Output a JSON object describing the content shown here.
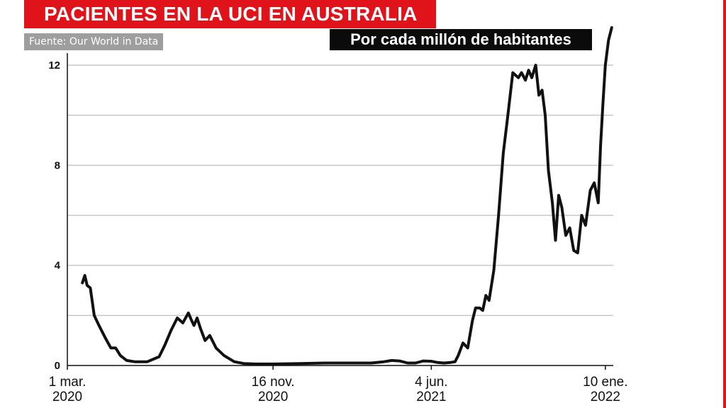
{
  "header": {
    "title": "PACIENTES EN LA UCI EN AUSTRALIA",
    "source": "Fuente: Our World in Data",
    "subtitle": "Por cada millón de habitantes"
  },
  "colors": {
    "title_bg": "#e0131b",
    "source_bg": "#9e9e9e",
    "subtitle_bg": "#0b0b0b",
    "line": "#111111",
    "grid": "#c8c8c8"
  },
  "chart_data": {
    "type": "line",
    "title": "PACIENTES EN LA UCI EN AUSTRALIA",
    "subtitle": "Por cada millón de habitantes",
    "xlabel": "",
    "ylabel": "",
    "ylim": [
      0,
      12
    ],
    "xlim": [
      "2020-03-01",
      "2022-01-20"
    ],
    "grid": true,
    "legend": "none",
    "y_ticks": [
      0,
      4,
      8,
      12
    ],
    "x_ticks": [
      {
        "date": "2020-03-01",
        "line1": "1 mar.",
        "line2": "2020"
      },
      {
        "date": "2020-11-16",
        "line1": "16 nov.",
        "line2": "2020"
      },
      {
        "date": "2021-06-04",
        "line1": "4 jun.",
        "line2": "2021"
      },
      {
        "date": "2022-01-10",
        "line1": "10 ene.",
        "line2": "2022"
      }
    ],
    "series": [
      {
        "x": [
          "2020-03-20",
          "2020-03-23",
          "2020-03-26",
          "2020-03-30",
          "2020-04-04",
          "2020-04-10",
          "2020-04-18",
          "2020-04-25",
          "2020-05-01",
          "2020-05-07",
          "2020-05-15",
          "2020-05-25",
          "2020-06-10",
          "2020-06-25",
          "2020-07-02",
          "2020-07-10",
          "2020-07-18",
          "2020-07-25",
          "2020-08-01",
          "2020-08-05",
          "2020-08-08",
          "2020-08-12",
          "2020-08-16",
          "2020-08-22",
          "2020-08-28",
          "2020-09-05",
          "2020-09-15",
          "2020-09-28",
          "2020-10-10",
          "2020-10-25",
          "2020-11-16",
          "2020-12-20",
          "2021-01-20",
          "2021-02-20",
          "2021-03-20",
          "2021-04-05",
          "2021-04-15",
          "2021-04-25",
          "2021-05-05",
          "2021-05-15",
          "2021-05-25",
          "2021-06-04",
          "2021-06-12",
          "2021-06-20",
          "2021-06-28",
          "2021-07-04",
          "2021-07-08",
          "2021-07-14",
          "2021-07-20",
          "2021-07-26",
          "2021-07-30",
          "2021-08-04",
          "2021-08-08",
          "2021-08-12",
          "2021-08-16",
          "2021-08-22",
          "2021-08-28",
          "2021-09-03",
          "2021-09-08",
          "2021-09-15",
          "2021-09-22",
          "2021-09-26",
          "2021-10-01",
          "2021-10-05",
          "2021-10-09",
          "2021-10-14",
          "2021-10-18",
          "2021-10-22",
          "2021-10-26",
          "2021-10-30",
          "2021-11-04",
          "2021-11-08",
          "2021-11-12",
          "2021-11-16",
          "2021-11-21",
          "2021-11-26",
          "2021-12-01",
          "2021-12-06",
          "2021-12-11",
          "2021-12-16",
          "2021-12-22",
          "2021-12-27",
          "2022-01-01",
          "2022-01-04",
          "2022-01-07",
          "2022-01-10",
          "2022-01-14",
          "2022-01-18"
        ],
        "y": [
          3.3,
          3.6,
          3.2,
          3.1,
          2.0,
          1.6,
          1.1,
          0.7,
          0.7,
          0.4,
          0.2,
          0.15,
          0.15,
          0.35,
          0.8,
          1.4,
          1.9,
          1.7,
          2.1,
          1.8,
          1.6,
          1.9,
          1.5,
          1.0,
          1.2,
          0.7,
          0.4,
          0.15,
          0.08,
          0.06,
          0.06,
          0.08,
          0.1,
          0.1,
          0.1,
          0.15,
          0.2,
          0.18,
          0.1,
          0.1,
          0.18,
          0.17,
          0.12,
          0.1,
          0.12,
          0.15,
          0.4,
          0.9,
          0.7,
          1.8,
          2.3,
          2.3,
          2.2,
          2.8,
          2.6,
          3.8,
          6.0,
          8.5,
          9.8,
          11.7,
          11.5,
          11.7,
          11.4,
          11.8,
          11.5,
          12.0,
          10.8,
          11.0,
          10.0,
          7.8,
          6.5,
          5.0,
          6.8,
          6.3,
          5.2,
          5.5,
          4.6,
          4.5,
          6.0,
          5.6,
          7.0,
          7.3,
          6.5,
          8.8,
          10.5,
          12.0,
          13.0,
          13.5
        ]
      }
    ]
  }
}
